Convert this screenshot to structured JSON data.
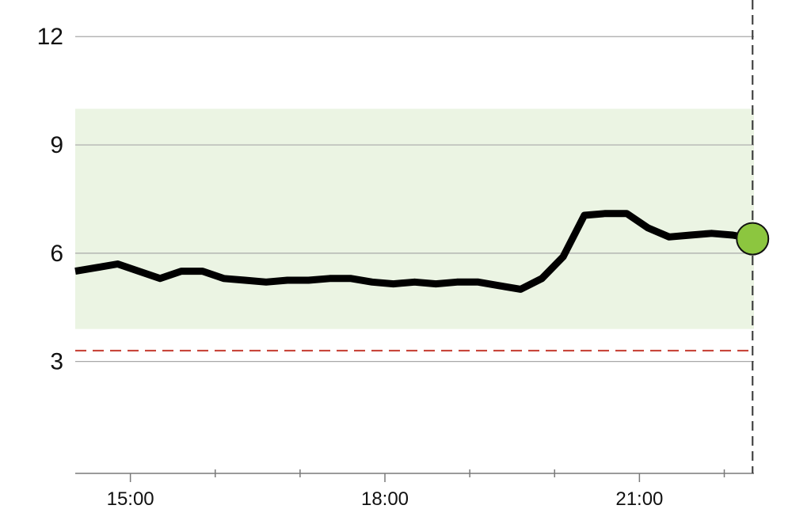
{
  "chart_data": {
    "type": "line",
    "title": "",
    "xlabel": "",
    "ylabel": "",
    "xlim": [
      "14:21",
      "22:21"
    ],
    "ylim": [
      -0.1,
      13.1
    ],
    "grid": true,
    "y_ticks": [
      {
        "value": 3,
        "label": "3"
      },
      {
        "value": 6,
        "label": "6"
      },
      {
        "value": 9,
        "label": "9"
      },
      {
        "value": 12,
        "label": "12"
      }
    ],
    "x_major_ticks": [
      {
        "value": "15:00",
        "label": "15:00"
      },
      {
        "value": "18:00",
        "label": "18:00"
      },
      {
        "value": "21:00",
        "label": "21:00"
      }
    ],
    "x_minor_ticks": [
      "16:00",
      "17:00",
      "19:00",
      "20:00",
      "22:00"
    ],
    "target_range": {
      "low": 3.9,
      "high": 10.0,
      "color": "#ebf4e3"
    },
    "low_threshold": {
      "value": 3.3,
      "color": "#c8463a",
      "style": "dashed"
    },
    "current_time": {
      "value": "22:20",
      "style": "dashed",
      "color": "#444444"
    },
    "series": [
      {
        "color": "#000000",
        "x": [
          "14:21",
          "14:36",
          "14:51",
          "15:06",
          "15:21",
          "15:36",
          "15:51",
          "16:06",
          "16:21",
          "16:36",
          "16:51",
          "17:06",
          "17:21",
          "17:36",
          "17:51",
          "18:06",
          "18:21",
          "18:36",
          "18:51",
          "19:06",
          "19:21",
          "19:36",
          "19:51",
          "20:06",
          "20:21",
          "20:36",
          "20:51",
          "21:06",
          "21:21",
          "21:36",
          "21:51",
          "22:06",
          "22:20"
        ],
        "values": [
          5.5,
          5.6,
          5.7,
          5.5,
          5.3,
          5.5,
          5.5,
          5.3,
          5.25,
          5.2,
          5.25,
          5.25,
          5.3,
          5.3,
          5.2,
          5.15,
          5.2,
          5.15,
          5.2,
          5.2,
          5.1,
          5.0,
          5.3,
          5.9,
          7.05,
          7.1,
          7.1,
          6.7,
          6.45,
          6.5,
          6.55,
          6.5,
          6.4
        ]
      }
    ],
    "current_reading": {
      "time": "22:20",
      "value": 6.4,
      "color": "#8cc63f"
    }
  }
}
